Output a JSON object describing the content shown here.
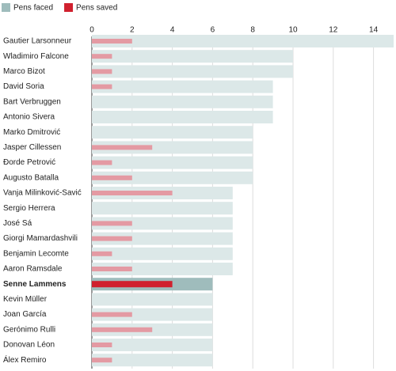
{
  "chart_data": {
    "type": "hbar_overlay",
    "categories": [
      "Gautier Larsonneur",
      "Wladimiro Falcone",
      "Marco Bizot",
      "David Soria",
      "Bart Verbruggen",
      "Antonio Sivera",
      "Marko Dmitrović",
      "Jasper Cillessen",
      "Đorde Petrović",
      "Augusto Batalla",
      "Vanja Milinković-Savić",
      "Sergio Herrera",
      "José Sá",
      "Giorgi Mamardashvili",
      "Benjamin Lecomte",
      "Aaron Ramsdale",
      "Senne Lammens",
      "Kevin Müller",
      "Joan García",
      "Gerónimo Rulli",
      "Donovan Léon",
      "Álex Remiro"
    ],
    "series": [
      {
        "name": "Pens faced",
        "color": "#9fbcbc",
        "muted_color": "#dce8e8",
        "values": [
          15,
          10,
          10,
          9,
          9,
          9,
          8,
          8,
          8,
          8,
          7,
          7,
          7,
          7,
          7,
          7,
          6,
          6,
          6,
          6,
          6,
          6
        ]
      },
      {
        "name": "Pens saved",
        "color": "#d0202e",
        "muted_color": "#e49aa3",
        "values": [
          2,
          1,
          1,
          1,
          0,
          0,
          0,
          3,
          1,
          2,
          4,
          0,
          2,
          2,
          1,
          2,
          4,
          0,
          2,
          3,
          1,
          1
        ]
      }
    ],
    "highlight": "Senne Lammens",
    "xlim": [
      0,
      15
    ],
    "xticks": [
      0,
      2,
      4,
      6,
      8,
      10,
      12,
      14
    ],
    "grid": true,
    "legend": "top-left"
  }
}
